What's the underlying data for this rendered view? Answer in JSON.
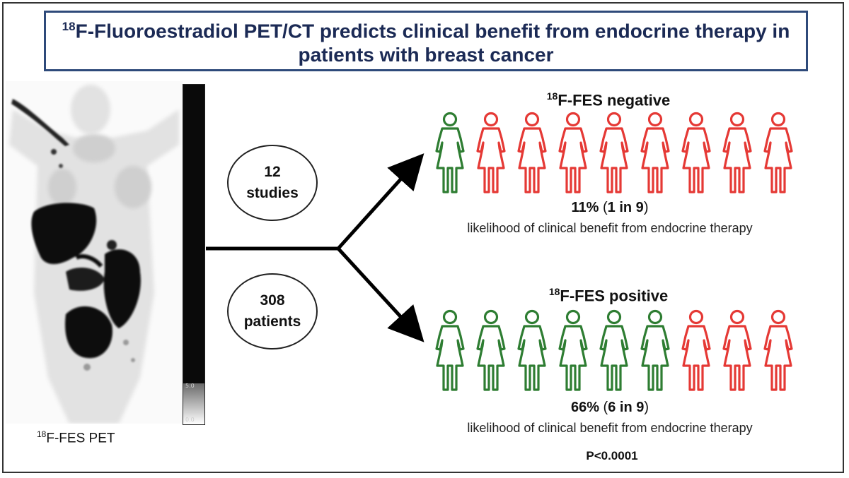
{
  "title": {
    "sup": "18",
    "line1_rest": "F-Fluoroestradiol PET/CT predicts clinical benefit from endocrine therapy in",
    "line2": "patients with breast cancer"
  },
  "pet_image": {
    "caption_sup": "18",
    "caption_rest": "F-FES PET",
    "scale_max": "5.0",
    "scale_min": "0.0"
  },
  "studies": {
    "number": "12",
    "label": "studies"
  },
  "patients": {
    "number": "308",
    "label": "patients"
  },
  "colors": {
    "benefit": "#2e7d32",
    "no_benefit": "#e53935",
    "title_border": "#2e4a7a",
    "title_text": "#1b2a55"
  },
  "negative": {
    "title_sup": "18",
    "title_rest": "F-FES negative",
    "percent": "11%",
    "ratio": "1 in 9",
    "description": "likelihood of clinical benefit from endocrine therapy",
    "benefit_count": 1,
    "total": 9
  },
  "positive": {
    "title_sup": "18",
    "title_rest": "F-FES positive",
    "percent": "66%",
    "ratio": "6 in 9",
    "description": "likelihood of clinical benefit from endocrine therapy",
    "benefit_count": 6,
    "total": 9
  },
  "p_value": "P<0.0001"
}
